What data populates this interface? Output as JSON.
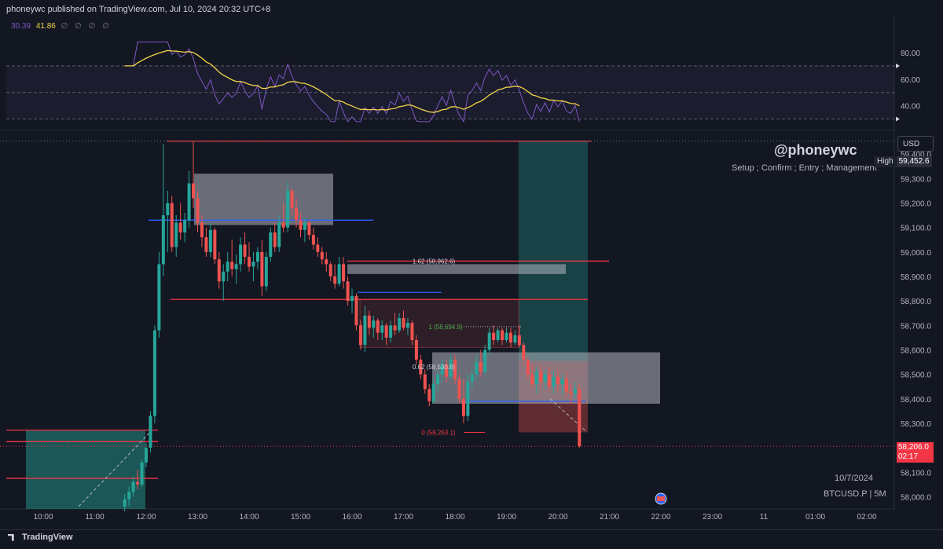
{
  "header": {
    "text": "phoneywc published on TradingView.com, Jul 10, 2024 20:32 UTC+8"
  },
  "rsi_values": {
    "rsi": "30.39",
    "ma": "41.86",
    "extra": "∅ ∅ ∅ ∅"
  },
  "currency": "USD",
  "handle": "@phoneywc",
  "subtitle": "Setup ; Confirm ; Entry ; Management",
  "watermark": {
    "date": "10/7/2024",
    "symbol": "BTCUSD.P | 5M"
  },
  "high_label": {
    "key": "High",
    "value": "59,452.6"
  },
  "last_price": {
    "value": "58,206.0",
    "countdown": "02:17"
  },
  "footer": {
    "brand": "TradingView"
  },
  "colors": {
    "up": "#26a69a",
    "down": "#ef5350",
    "rsi": "#7e57c2",
    "rsi_ma": "#f5d547",
    "bg": "#131722"
  },
  "chart_data": {
    "type": "candlestick",
    "symbol": "BTCUSD.P",
    "timeframe": "5M",
    "x_ticks": [
      "10:00",
      "11:00",
      "12:00",
      "13:00",
      "14:00",
      "15:00",
      "16:00",
      "17:00",
      "18:00",
      "19:00",
      "20:00",
      "21:00",
      "22:00",
      "23:00",
      "11",
      "01:00",
      "02:00"
    ],
    "y_ticks": [
      58000,
      58100,
      58200,
      58300,
      58400,
      58500,
      58600,
      58700,
      58800,
      58900,
      59000,
      59100,
      59200,
      59300,
      59400
    ],
    "ylim": [
      57950,
      59500
    ],
    "candles": [
      {
        "t": "11:35",
        "o": 57960,
        "h": 58010,
        "l": 57940,
        "c": 57990
      },
      {
        "t": "11:40",
        "o": 57990,
        "h": 58040,
        "l": 57960,
        "c": 58020
      },
      {
        "t": "11:45",
        "o": 58020,
        "h": 58080,
        "l": 58000,
        "c": 58060
      },
      {
        "t": "11:50",
        "o": 58060,
        "h": 58110,
        "l": 58030,
        "c": 58050
      },
      {
        "t": "11:55",
        "o": 58050,
        "h": 58150,
        "l": 58040,
        "c": 58140
      },
      {
        "t": "12:00",
        "o": 58140,
        "h": 58220,
        "l": 58120,
        "c": 58200
      },
      {
        "t": "12:05",
        "o": 58200,
        "h": 58350,
        "l": 58180,
        "c": 58330
      },
      {
        "t": "12:10",
        "o": 58330,
        "h": 58700,
        "l": 58300,
        "c": 58680
      },
      {
        "t": "12:15",
        "o": 58680,
        "h": 59000,
        "l": 58650,
        "c": 58950
      },
      {
        "t": "12:20",
        "o": 58950,
        "h": 59440,
        "l": 58900,
        "c": 59150
      },
      {
        "t": "12:25",
        "o": 59150,
        "h": 59250,
        "l": 59000,
        "c": 59200
      },
      {
        "t": "12:30",
        "o": 59200,
        "h": 59230,
        "l": 59000,
        "c": 59020
      },
      {
        "t": "12:35",
        "o": 59020,
        "h": 59150,
        "l": 58980,
        "c": 59120
      },
      {
        "t": "12:40",
        "o": 59120,
        "h": 59200,
        "l": 59050,
        "c": 59080
      },
      {
        "t": "12:45",
        "o": 59080,
        "h": 59160,
        "l": 59040,
        "c": 59130
      },
      {
        "t": "12:50",
        "o": 59130,
        "h": 59330,
        "l": 59100,
        "c": 59280
      },
      {
        "t": "12:55",
        "o": 59280,
        "h": 59450,
        "l": 59180,
        "c": 59220
      },
      {
        "t": "13:00",
        "o": 59220,
        "h": 59250,
        "l": 59080,
        "c": 59120
      },
      {
        "t": "13:05",
        "o": 59120,
        "h": 59150,
        "l": 59020,
        "c": 59060
      },
      {
        "t": "13:10",
        "o": 59060,
        "h": 59100,
        "l": 58980,
        "c": 59000
      },
      {
        "t": "13:15",
        "o": 59000,
        "h": 59120,
        "l": 58980,
        "c": 59090
      },
      {
        "t": "13:20",
        "o": 59090,
        "h": 59100,
        "l": 58950,
        "c": 58970
      },
      {
        "t": "13:25",
        "o": 58970,
        "h": 59000,
        "l": 58850,
        "c": 58880
      },
      {
        "t": "13:30",
        "o": 58880,
        "h": 58950,
        "l": 58800,
        "c": 58920
      },
      {
        "t": "13:35",
        "o": 58920,
        "h": 59000,
        "l": 58880,
        "c": 58960
      },
      {
        "t": "13:40",
        "o": 58960,
        "h": 59050,
        "l": 58900,
        "c": 58930
      },
      {
        "t": "13:45",
        "o": 58930,
        "h": 58990,
        "l": 58870,
        "c": 58950
      },
      {
        "t": "13:50",
        "o": 58950,
        "h": 59060,
        "l": 58920,
        "c": 59030
      },
      {
        "t": "13:55",
        "o": 59030,
        "h": 59080,
        "l": 58950,
        "c": 58980
      },
      {
        "t": "14:00",
        "o": 58980,
        "h": 59040,
        "l": 58920,
        "c": 58940
      },
      {
        "t": "14:05",
        "o": 58940,
        "h": 59000,
        "l": 58880,
        "c": 58960
      },
      {
        "t": "14:10",
        "o": 58960,
        "h": 59020,
        "l": 58930,
        "c": 59000
      },
      {
        "t": "14:15",
        "o": 59000,
        "h": 59050,
        "l": 58820,
        "c": 58860
      },
      {
        "t": "14:20",
        "o": 58860,
        "h": 59000,
        "l": 58840,
        "c": 58980
      },
      {
        "t": "14:25",
        "o": 58980,
        "h": 59100,
        "l": 58960,
        "c": 59080
      },
      {
        "t": "14:30",
        "o": 59080,
        "h": 59120,
        "l": 59000,
        "c": 59020
      },
      {
        "t": "14:35",
        "o": 59020,
        "h": 59150,
        "l": 59000,
        "c": 59120
      },
      {
        "t": "14:40",
        "o": 59120,
        "h": 59200,
        "l": 59080,
        "c": 59100
      },
      {
        "t": "14:45",
        "o": 59100,
        "h": 59290,
        "l": 59080,
        "c": 59250
      },
      {
        "t": "14:50",
        "o": 59250,
        "h": 59260,
        "l": 59150,
        "c": 59180
      },
      {
        "t": "14:55",
        "o": 59180,
        "h": 59220,
        "l": 59100,
        "c": 59130
      },
      {
        "t": "15:00",
        "o": 59130,
        "h": 59160,
        "l": 59060,
        "c": 59090
      },
      {
        "t": "15:05",
        "o": 59090,
        "h": 59140,
        "l": 59040,
        "c": 59120
      },
      {
        "t": "15:10",
        "o": 59120,
        "h": 59130,
        "l": 59050,
        "c": 59070
      },
      {
        "t": "15:15",
        "o": 59070,
        "h": 59100,
        "l": 59010,
        "c": 59030
      },
      {
        "t": "15:20",
        "o": 59030,
        "h": 59060,
        "l": 58980,
        "c": 59000
      },
      {
        "t": "15:25",
        "o": 59000,
        "h": 59020,
        "l": 58950,
        "c": 58970
      },
      {
        "t": "15:30",
        "o": 58970,
        "h": 59000,
        "l": 58920,
        "c": 58950
      },
      {
        "t": "15:35",
        "o": 58950,
        "h": 58960,
        "l": 58880,
        "c": 58900
      },
      {
        "t": "15:40",
        "o": 58900,
        "h": 58950,
        "l": 58850,
        "c": 58870
      },
      {
        "t": "15:45",
        "o": 58870,
        "h": 58980,
        "l": 58860,
        "c": 58950
      },
      {
        "t": "15:50",
        "o": 58950,
        "h": 58980,
        "l": 58850,
        "c": 58880
      },
      {
        "t": "15:55",
        "o": 58880,
        "h": 58900,
        "l": 58780,
        "c": 58800
      },
      {
        "t": "16:00",
        "o": 58800,
        "h": 58850,
        "l": 58750,
        "c": 58820
      },
      {
        "t": "16:05",
        "o": 58820,
        "h": 58830,
        "l": 58680,
        "c": 58700
      },
      {
        "t": "16:10",
        "o": 58700,
        "h": 58720,
        "l": 58600,
        "c": 58620
      },
      {
        "t": "16:15",
        "o": 58620,
        "h": 58780,
        "l": 58590,
        "c": 58740
      },
      {
        "t": "16:20",
        "o": 58740,
        "h": 58760,
        "l": 58660,
        "c": 58690
      },
      {
        "t": "16:25",
        "o": 58690,
        "h": 58740,
        "l": 58650,
        "c": 58720
      },
      {
        "t": "16:30",
        "o": 58720,
        "h": 58730,
        "l": 58640,
        "c": 58670
      },
      {
        "t": "16:35",
        "o": 58670,
        "h": 58720,
        "l": 58640,
        "c": 58700
      },
      {
        "t": "16:40",
        "o": 58700,
        "h": 58710,
        "l": 58620,
        "c": 58650
      },
      {
        "t": "16:45",
        "o": 58650,
        "h": 58720,
        "l": 58630,
        "c": 58700
      },
      {
        "t": "16:50",
        "o": 58700,
        "h": 58750,
        "l": 58660,
        "c": 58680
      },
      {
        "t": "16:55",
        "o": 58680,
        "h": 58750,
        "l": 58670,
        "c": 58730
      },
      {
        "t": "17:00",
        "o": 58730,
        "h": 58760,
        "l": 58680,
        "c": 58690
      },
      {
        "t": "17:05",
        "o": 58690,
        "h": 58730,
        "l": 58660,
        "c": 58710
      },
      {
        "t": "17:10",
        "o": 58710,
        "h": 58720,
        "l": 58620,
        "c": 58640
      },
      {
        "t": "17:15",
        "o": 58640,
        "h": 58660,
        "l": 58540,
        "c": 58560
      },
      {
        "t": "17:20",
        "o": 58560,
        "h": 58580,
        "l": 58480,
        "c": 58500
      },
      {
        "t": "17:25",
        "o": 58500,
        "h": 58520,
        "l": 58420,
        "c": 58440
      },
      {
        "t": "17:30",
        "o": 58440,
        "h": 58460,
        "l": 58370,
        "c": 58390
      },
      {
        "t": "17:35",
        "o": 58390,
        "h": 58480,
        "l": 58380,
        "c": 58460
      },
      {
        "t": "17:40",
        "o": 58460,
        "h": 58520,
        "l": 58430,
        "c": 58500
      },
      {
        "t": "17:45",
        "o": 58500,
        "h": 58560,
        "l": 58470,
        "c": 58540
      },
      {
        "t": "17:50",
        "o": 58540,
        "h": 58560,
        "l": 58470,
        "c": 58490
      },
      {
        "t": "17:55",
        "o": 58490,
        "h": 58580,
        "l": 58480,
        "c": 58560
      },
      {
        "t": "18:00",
        "o": 58560,
        "h": 58580,
        "l": 58460,
        "c": 58480
      },
      {
        "t": "18:05",
        "o": 58480,
        "h": 58500,
        "l": 58380,
        "c": 58400
      },
      {
        "t": "18:10",
        "o": 58400,
        "h": 58480,
        "l": 58300,
        "c": 58330
      },
      {
        "t": "18:15",
        "o": 58330,
        "h": 58500,
        "l": 58310,
        "c": 58470
      },
      {
        "t": "18:20",
        "o": 58470,
        "h": 58520,
        "l": 58440,
        "c": 58500
      },
      {
        "t": "18:25",
        "o": 58500,
        "h": 58580,
        "l": 58480,
        "c": 58550
      },
      {
        "t": "18:30",
        "o": 58550,
        "h": 58600,
        "l": 58490,
        "c": 58510
      },
      {
        "t": "18:35",
        "o": 58510,
        "h": 58620,
        "l": 58500,
        "c": 58600
      },
      {
        "t": "18:40",
        "o": 58600,
        "h": 58690,
        "l": 58580,
        "c": 58670
      },
      {
        "t": "18:45",
        "o": 58670,
        "h": 58700,
        "l": 58620,
        "c": 58640
      },
      {
        "t": "18:50",
        "o": 58640,
        "h": 58690,
        "l": 58630,
        "c": 58680
      },
      {
        "t": "18:55",
        "o": 58680,
        "h": 58690,
        "l": 58620,
        "c": 58640
      },
      {
        "t": "19:00",
        "o": 58640,
        "h": 58690,
        "l": 58630,
        "c": 58670
      },
      {
        "t": "19:05",
        "o": 58670,
        "h": 58690,
        "l": 58610,
        "c": 58630
      },
      {
        "t": "19:10",
        "o": 58630,
        "h": 58680,
        "l": 58620,
        "c": 58660
      },
      {
        "t": "19:15",
        "o": 58660,
        "h": 58700,
        "l": 58610,
        "c": 58620
      },
      {
        "t": "19:20",
        "o": 58620,
        "h": 58630,
        "l": 58540,
        "c": 58560
      },
      {
        "t": "19:25",
        "o": 58560,
        "h": 58570,
        "l": 58480,
        "c": 58500
      },
      {
        "t": "19:30",
        "o": 58500,
        "h": 58540,
        "l": 58440,
        "c": 58460
      },
      {
        "t": "19:35",
        "o": 58460,
        "h": 58530,
        "l": 58420,
        "c": 58510
      },
      {
        "t": "19:40",
        "o": 58510,
        "h": 58540,
        "l": 58450,
        "c": 58470
      },
      {
        "t": "19:45",
        "o": 58470,
        "h": 58520,
        "l": 58440,
        "c": 58500
      },
      {
        "t": "19:50",
        "o": 58500,
        "h": 58530,
        "l": 58430,
        "c": 58450
      },
      {
        "t": "19:55",
        "o": 58450,
        "h": 58510,
        "l": 58420,
        "c": 58490
      },
      {
        "t": "20:00",
        "o": 58490,
        "h": 58520,
        "l": 58430,
        "c": 58460
      },
      {
        "t": "20:05",
        "o": 58460,
        "h": 58500,
        "l": 58420,
        "c": 58480
      },
      {
        "t": "20:10",
        "o": 58480,
        "h": 58510,
        "l": 58410,
        "c": 58430
      },
      {
        "t": "20:15",
        "o": 58430,
        "h": 58460,
        "l": 58380,
        "c": 58420
      },
      {
        "t": "20:20",
        "o": 58420,
        "h": 58470,
        "l": 58400,
        "c": 58440
      },
      {
        "t": "20:25",
        "o": 58440,
        "h": 58460,
        "l": 58200,
        "c": 58206
      }
    ],
    "annotations": {
      "fib_labels": [
        {
          "text": "1.62 (58,962.6)",
          "price": 58962.6,
          "color": "#d1d4dc"
        },
        {
          "text": "1 (58,694.9)",
          "price": 58694.9,
          "color": "#4caf50"
        },
        {
          "text": "0.62 (58,530.8)",
          "price": 58530.8,
          "color": "#d1d4dc"
        },
        {
          "text": "0 (58,263.1)",
          "price": 58263.1,
          "color": "#f23645"
        }
      ],
      "red_lines": [
        59452.6,
        58962.6,
        58806
      ],
      "blue_lines": [
        59130,
        58830,
        58390
      ]
    },
    "rsi": {
      "levels": [
        70,
        50,
        30
      ],
      "ticks": [
        80,
        60,
        40
      ],
      "ylim": [
        25,
        90
      ]
    }
  }
}
